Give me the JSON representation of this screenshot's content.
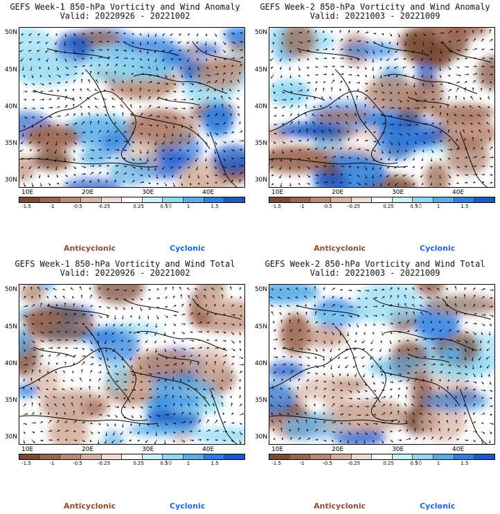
{
  "colors": {
    "anticyclonic_text": "#8b4a2e",
    "cyclonic_text": "#1e63d6",
    "colorbar": [
      "#7a4a35",
      "#9b6550",
      "#b98a75",
      "#d6b3a2",
      "#efdcd3",
      "#ffffff",
      "#c9f1f7",
      "#8fd7f2",
      "#5aaee8",
      "#2f80e0",
      "#1859c9"
    ]
  },
  "colorbar_labels": [
    "-1.5",
    "-1",
    "-0.5",
    "-0.25",
    "0.25",
    "0.5",
    "1",
    "1.5"
  ],
  "colorbar_unit": "10",
  "legend": {
    "anticyclonic": "Anticyclonic",
    "cyclonic": "Cyclonic"
  },
  "axes": {
    "lat_labels": [
      "50N",
      "45N",
      "40N",
      "35N",
      "30N"
    ],
    "lon_labels": [
      "10E",
      "20E",
      "30E",
      "40E"
    ]
  },
  "panels": [
    {
      "title": "GEFS Week-1 850-hPa Vorticity and Wind Anomaly",
      "valid": "Valid: 20220926 - 20221002"
    },
    {
      "title": "GEFS Week-2 850-hPa Vorticity and Wind Anomaly",
      "valid": "Valid: 20221003 - 20221009"
    },
    {
      "title": "GEFS Week-1 850-hPa Vorticity and Wind Total",
      "valid": "Valid: 20220926 - 20221002"
    },
    {
      "title": "GEFS Week-2 850-hPa Vorticity and Wind Total",
      "valid": "Valid: 20221003 - 20221009"
    }
  ]
}
